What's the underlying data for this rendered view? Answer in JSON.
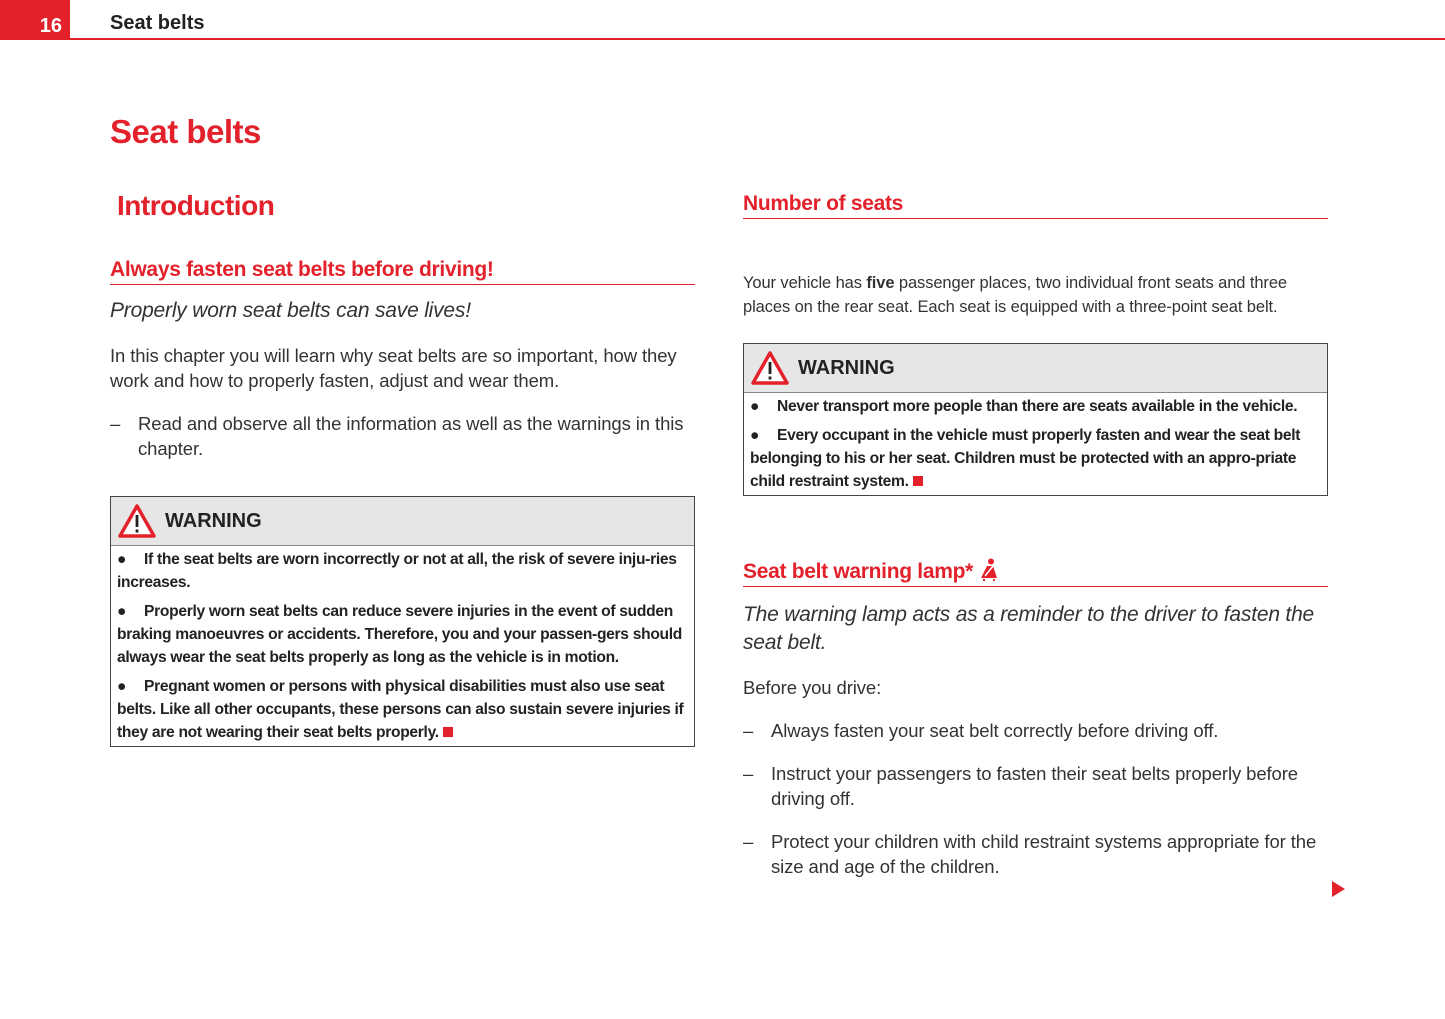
{
  "header": {
    "page_number": "16",
    "running_title": "Seat belts"
  },
  "chapter_title": "Seat belts",
  "left": {
    "section_title": "Introduction",
    "subsection_title": "Always fasten seat belts before driving!",
    "lead": "Properly worn seat belts can save lives!",
    "paragraph": "In this chapter you will learn why seat belts are so important, how they work and how to properly fasten, adjust and wear them.",
    "dash_items": [
      "Read and observe all the information as well as the warnings in this chapter."
    ],
    "warning": {
      "title": "WARNING",
      "items": [
        "If the seat belts are worn incorrectly or not at all, the risk of severe inju-ries increases.",
        "Properly worn seat belts can reduce severe injuries in the event of sudden braking manoeuvres or accidents. Therefore, you and your passen-gers should always wear the seat belts properly as long as the vehicle is in motion.",
        "Pregnant women or persons with physical disabilities must also use seat belts. Like all other occupants, these persons can also sustain severe injuries if they are not wearing their seat belts properly."
      ]
    }
  },
  "right": {
    "seats": {
      "title": "Number of seats",
      "text_before": "Your vehicle has ",
      "text_bold": "five",
      "text_after": " passenger places, two individual front seats and three places on the rear seat. Each seat is equipped with a three-point seat belt.",
      "warning": {
        "title": "WARNING",
        "items": [
          "Never transport more people than there are seats available in the vehicle.",
          "Every occupant in the vehicle must properly fasten and wear the seat belt belonging to his or her seat. Children must be protected with an appro-priate child restraint system."
        ]
      }
    },
    "lamp": {
      "title": "Seat belt warning lamp*",
      "icon": "seat-belt-warning-icon",
      "lead": "The warning lamp acts as a reminder to the driver to fasten the seat belt.",
      "paragraph": "Before you drive:",
      "dash_items": [
        "Always fasten your seat belt correctly before driving off.",
        "Instruct your passengers to fasten their seat belts properly before driving off.",
        "Protect your children with child restraint systems appropriate for the size and age of the children."
      ]
    }
  },
  "colors": {
    "accent": "#e3212b",
    "warning_header_bg": "#e6e6e6"
  }
}
